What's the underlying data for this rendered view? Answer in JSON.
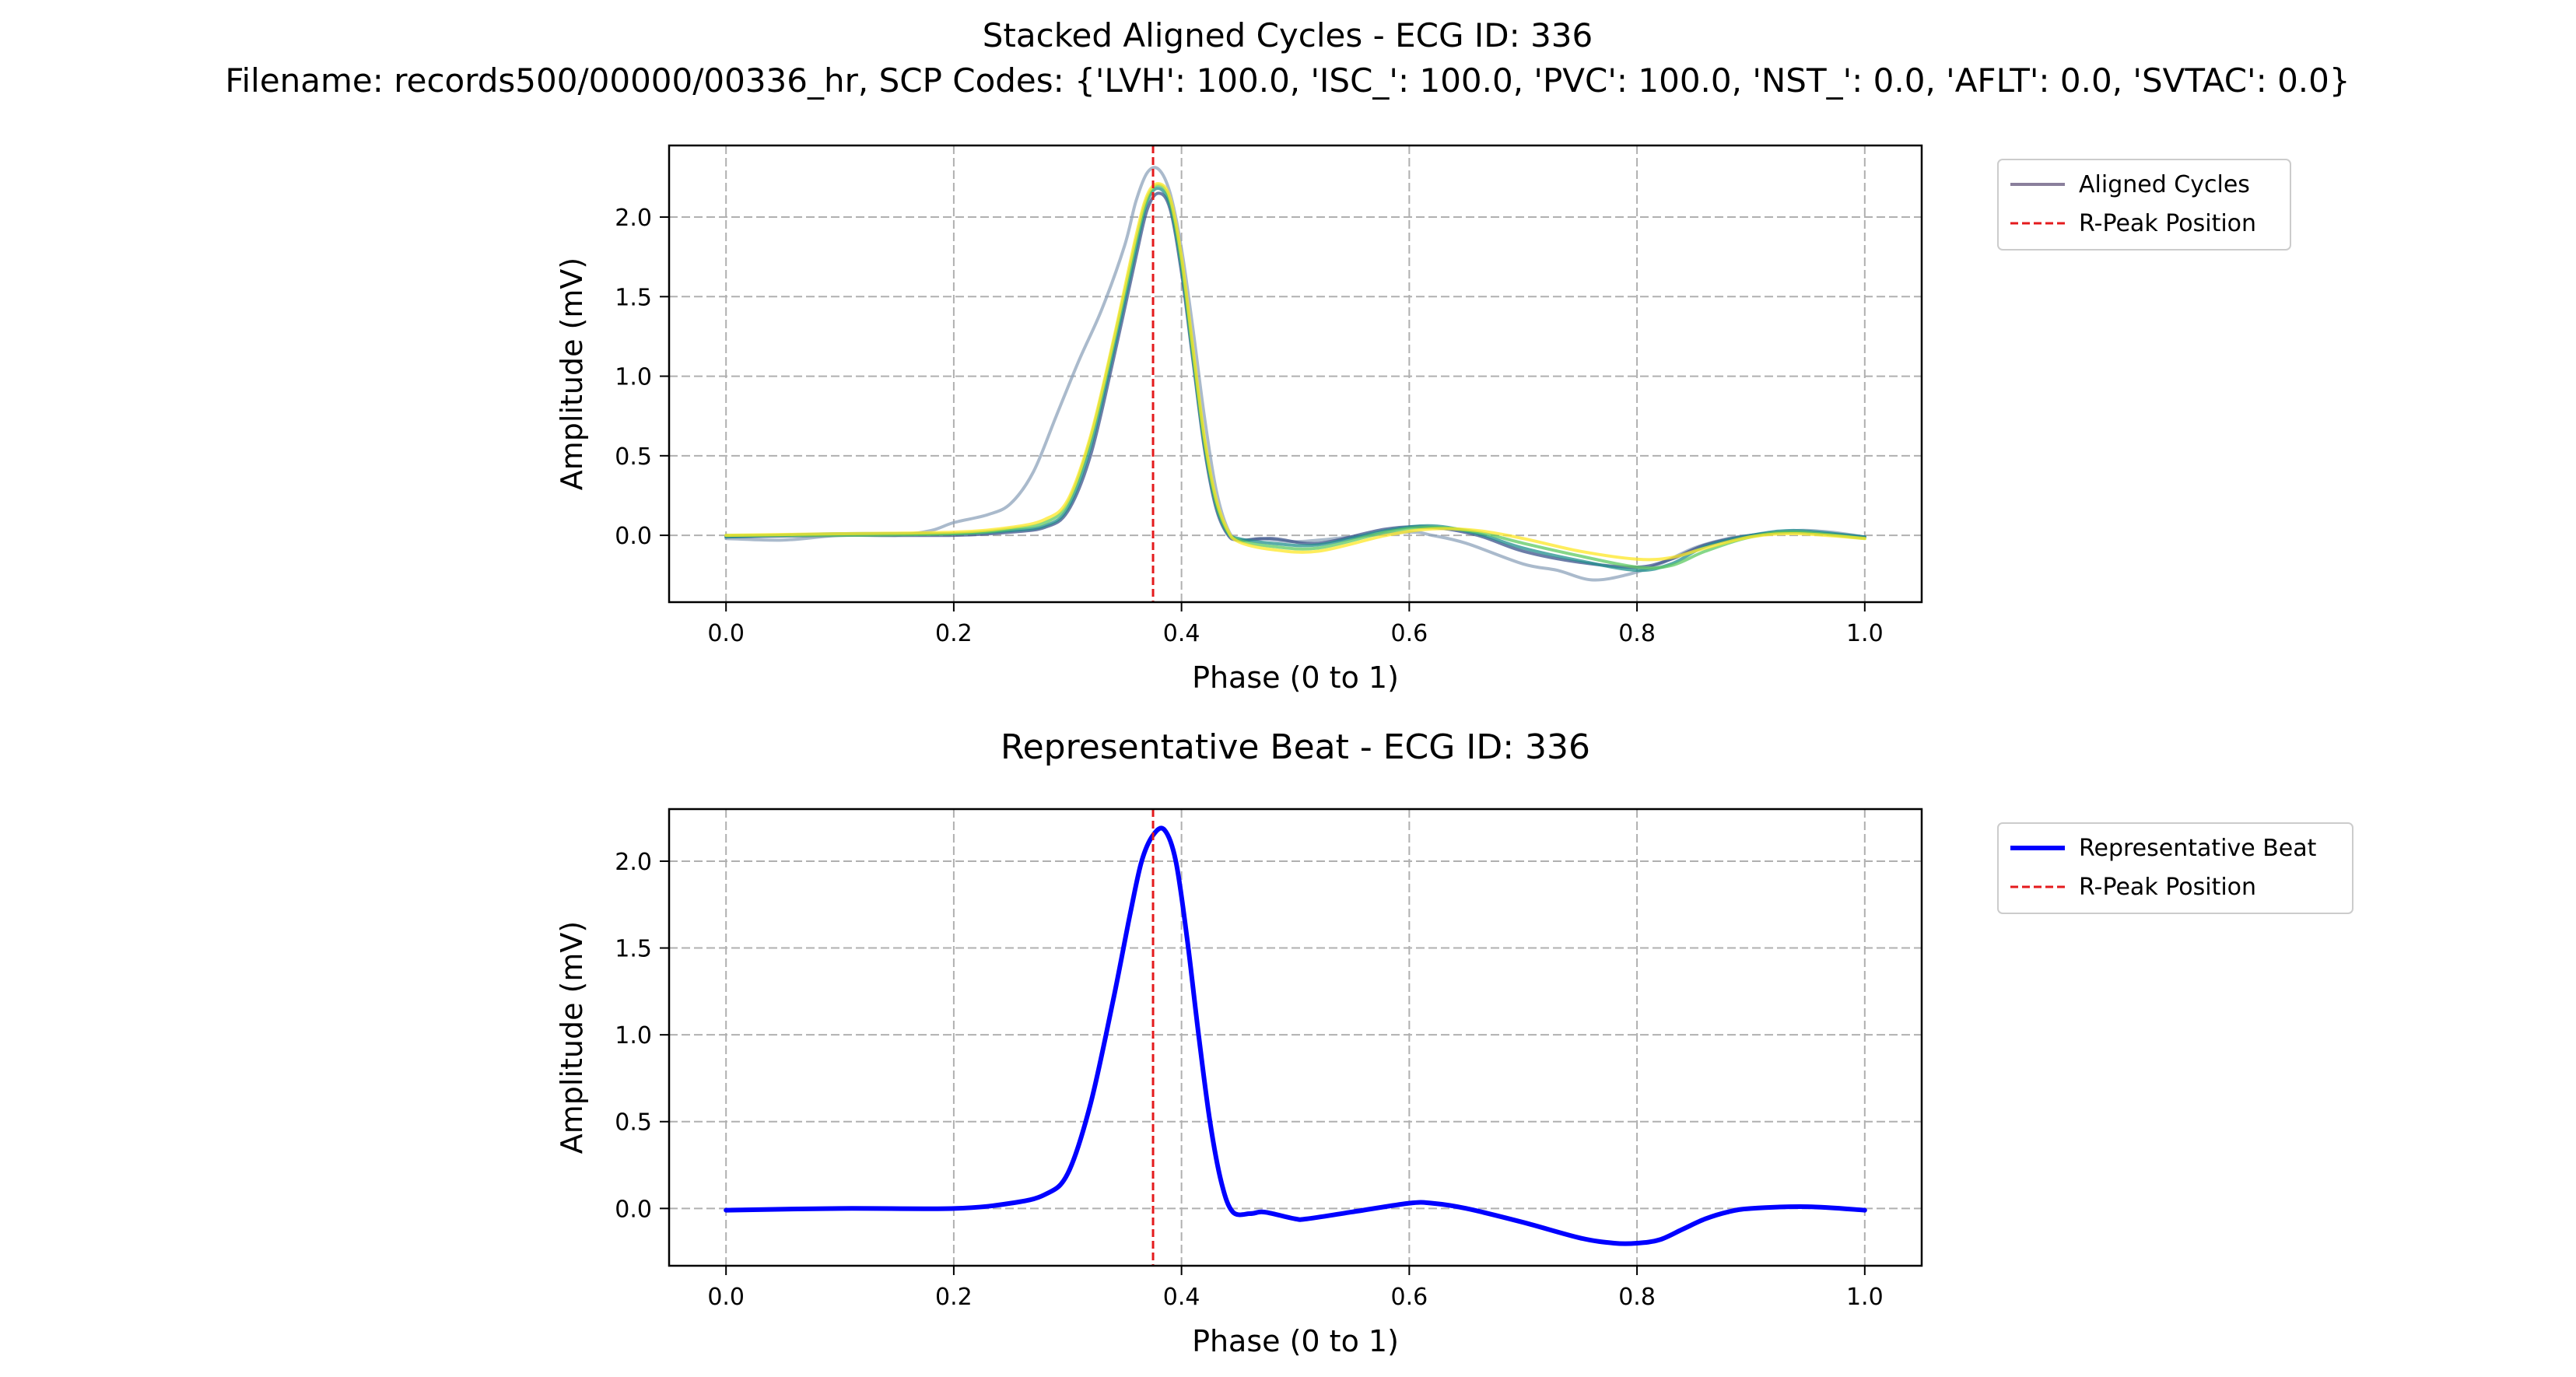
{
  "figure": {
    "suptitle_line1": "Stacked Aligned Cycles - ECG ID: 336",
    "suptitle_line2": "Filename: records500/00000/00336_hr, SCP Codes: {'LVH': 100.0, 'ISC_': 100.0, 'PVC': 100.0, 'NST_': 0.0, 'AFLT': 0.0, 'SVTAC': 0.0}"
  },
  "chart_data": [
    {
      "type": "line",
      "title": "",
      "xlabel": "Phase (0 to 1)",
      "ylabel": "Amplitude (mV)",
      "xlim": [
        -0.05,
        1.05
      ],
      "ylim": [
        -0.42,
        2.45
      ],
      "xticks": [
        0.0,
        0.2,
        0.4,
        0.6,
        0.8,
        1.0
      ],
      "xtick_labels": [
        "0.0",
        "0.2",
        "0.4",
        "0.6",
        "0.8",
        "1.0"
      ],
      "yticks": [
        0.0,
        0.5,
        1.0,
        1.5,
        2.0
      ],
      "ytick_labels": [
        "0.0",
        "0.5",
        "1.0",
        "1.5",
        "2.0"
      ],
      "grid": true,
      "legend_position": "outside-upper-right",
      "legend": [
        {
          "label": "Aligned Cycles",
          "color": "#8a7f9c",
          "style": "solid"
        },
        {
          "label": "R-Peak Position",
          "color": "#e41a1c",
          "style": "dashed"
        }
      ],
      "r_peak_x": 0.375,
      "series": [
        {
          "color": "#8da3bb",
          "x": [
            0,
            0.05,
            0.1,
            0.15,
            0.18,
            0.2,
            0.23,
            0.25,
            0.27,
            0.29,
            0.31,
            0.33,
            0.35,
            0.36,
            0.37,
            0.38,
            0.39,
            0.4,
            0.41,
            0.42,
            0.43,
            0.44,
            0.45,
            0.47,
            0.5,
            0.55,
            0.6,
            0.62,
            0.65,
            0.7,
            0.73,
            0.76,
            0.79,
            0.82,
            0.85,
            0.88,
            0.9,
            0.94,
            0.97,
            1.0
          ],
          "y": [
            -0.02,
            -0.03,
            0.0,
            0.0,
            0.03,
            0.08,
            0.13,
            0.2,
            0.4,
            0.75,
            1.1,
            1.42,
            1.82,
            2.1,
            2.28,
            2.3,
            2.15,
            1.8,
            1.3,
            0.75,
            0.3,
            0.05,
            -0.03,
            -0.02,
            -0.04,
            -0.01,
            0.02,
            0.0,
            -0.05,
            -0.18,
            -0.22,
            -0.28,
            -0.25,
            -0.18,
            -0.08,
            -0.02,
            0.0,
            0.03,
            0.02,
            -0.01
          ]
        },
        {
          "color": "#3b528b",
          "x": [
            0,
            0.1,
            0.2,
            0.25,
            0.28,
            0.3,
            0.32,
            0.34,
            0.36,
            0.37,
            0.38,
            0.39,
            0.4,
            0.41,
            0.42,
            0.43,
            0.44,
            0.45,
            0.48,
            0.52,
            0.58,
            0.62,
            0.66,
            0.7,
            0.75,
            0.8,
            0.83,
            0.86,
            0.9,
            0.94,
            1.0
          ],
          "y": [
            -0.01,
            0.0,
            0.0,
            0.02,
            0.05,
            0.15,
            0.5,
            1.1,
            1.75,
            2.05,
            2.15,
            2.05,
            1.65,
            1.1,
            0.55,
            0.18,
            0.01,
            -0.03,
            -0.02,
            -0.05,
            0.04,
            0.05,
            0.0,
            -0.1,
            -0.17,
            -0.2,
            -0.15,
            -0.06,
            0.0,
            0.02,
            -0.01
          ]
        },
        {
          "color": "#21908d",
          "x": [
            0,
            0.1,
            0.2,
            0.25,
            0.28,
            0.3,
            0.32,
            0.34,
            0.36,
            0.37,
            0.38,
            0.39,
            0.4,
            0.41,
            0.42,
            0.43,
            0.44,
            0.45,
            0.48,
            0.52,
            0.58,
            0.62,
            0.66,
            0.7,
            0.75,
            0.8,
            0.83,
            0.86,
            0.9,
            0.94,
            1.0
          ],
          "y": [
            -0.01,
            0.01,
            0.01,
            0.03,
            0.06,
            0.17,
            0.55,
            1.15,
            1.8,
            2.1,
            2.18,
            2.07,
            1.68,
            1.12,
            0.57,
            0.2,
            0.02,
            -0.02,
            -0.05,
            -0.06,
            0.03,
            0.06,
            0.01,
            -0.08,
            -0.16,
            -0.22,
            -0.18,
            -0.07,
            0.0,
            0.03,
            -0.01
          ]
        },
        {
          "color": "#5ec962",
          "x": [
            0,
            0.1,
            0.2,
            0.25,
            0.28,
            0.3,
            0.32,
            0.34,
            0.36,
            0.37,
            0.38,
            0.39,
            0.4,
            0.41,
            0.42,
            0.43,
            0.44,
            0.45,
            0.48,
            0.52,
            0.58,
            0.62,
            0.66,
            0.7,
            0.75,
            0.8,
            0.83,
            0.86,
            0.9,
            0.94,
            1.0
          ],
          "y": [
            0.0,
            0.0,
            0.01,
            0.04,
            0.08,
            0.2,
            0.6,
            1.2,
            1.85,
            2.12,
            2.2,
            2.1,
            1.72,
            1.15,
            0.6,
            0.22,
            0.03,
            -0.03,
            -0.07,
            -0.08,
            0.02,
            0.05,
            0.02,
            -0.05,
            -0.13,
            -0.2,
            -0.19,
            -0.1,
            -0.01,
            0.02,
            -0.02
          ]
        },
        {
          "color": "#fde725",
          "x": [
            0,
            0.1,
            0.2,
            0.25,
            0.28,
            0.3,
            0.32,
            0.34,
            0.36,
            0.37,
            0.38,
            0.39,
            0.4,
            0.41,
            0.42,
            0.43,
            0.44,
            0.45,
            0.48,
            0.52,
            0.58,
            0.62,
            0.66,
            0.7,
            0.75,
            0.8,
            0.83,
            0.86,
            0.9,
            0.94,
            1.0
          ],
          "y": [
            0.0,
            0.01,
            0.02,
            0.05,
            0.1,
            0.22,
            0.62,
            1.22,
            1.88,
            2.14,
            2.21,
            2.12,
            1.75,
            1.18,
            0.62,
            0.24,
            0.04,
            -0.04,
            -0.09,
            -0.1,
            0.0,
            0.04,
            0.03,
            -0.02,
            -0.1,
            -0.15,
            -0.14,
            -0.08,
            -0.01,
            0.01,
            -0.02
          ]
        }
      ]
    },
    {
      "type": "line",
      "title": "Representative Beat - ECG ID: 336",
      "xlabel": "Phase (0 to 1)",
      "ylabel": "Amplitude (mV)",
      "xlim": [
        -0.05,
        1.05
      ],
      "ylim": [
        -0.33,
        2.3
      ],
      "xticks": [
        0.0,
        0.2,
        0.4,
        0.6,
        0.8,
        1.0
      ],
      "xtick_labels": [
        "0.0",
        "0.2",
        "0.4",
        "0.6",
        "0.8",
        "1.0"
      ],
      "yticks": [
        0.0,
        0.5,
        1.0,
        1.5,
        2.0
      ],
      "ytick_labels": [
        "0.0",
        "0.5",
        "1.0",
        "1.5",
        "2.0"
      ],
      "grid": true,
      "legend_position": "outside-upper-right",
      "legend": [
        {
          "label": "Representative Beat",
          "color": "#0000ff",
          "style": "solid"
        },
        {
          "label": "R-Peak Position",
          "color": "#e41a1c",
          "style": "dashed"
        }
      ],
      "r_peak_x": 0.375,
      "series": [
        {
          "color": "#0000ff",
          "x": [
            0,
            0.1,
            0.2,
            0.25,
            0.28,
            0.3,
            0.32,
            0.34,
            0.355,
            0.365,
            0.375,
            0.385,
            0.395,
            0.405,
            0.415,
            0.425,
            0.435,
            0.445,
            0.46,
            0.47,
            0.48,
            0.5,
            0.51,
            0.55,
            0.6,
            0.62,
            0.65,
            0.7,
            0.75,
            0.78,
            0.8,
            0.82,
            0.84,
            0.86,
            0.88,
            0.9,
            0.95,
            1.0
          ],
          "y": [
            -0.01,
            0.0,
            0.0,
            0.03,
            0.08,
            0.2,
            0.6,
            1.2,
            1.7,
            2.0,
            2.15,
            2.18,
            2.0,
            1.55,
            1.0,
            0.5,
            0.15,
            -0.02,
            -0.03,
            -0.02,
            -0.03,
            -0.06,
            -0.06,
            -0.02,
            0.03,
            0.03,
            0.0,
            -0.08,
            -0.17,
            -0.2,
            -0.2,
            -0.18,
            -0.12,
            -0.06,
            -0.02,
            0.0,
            0.01,
            -0.01
          ]
        }
      ]
    }
  ]
}
